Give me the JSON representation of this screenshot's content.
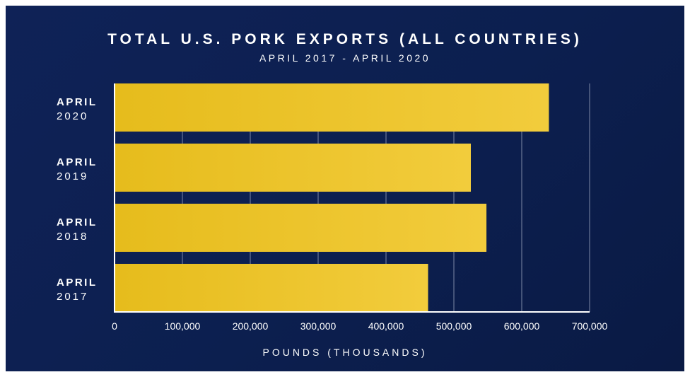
{
  "chart_data": {
    "type": "bar",
    "orientation": "horizontal",
    "title": "TOTAL U.S. PORK EXPORTS (ALL COUNTRIES)",
    "subtitle": "APRIL 2017 - APRIL 2020",
    "xlabel": "POUNDS (THOUSANDS)",
    "ylabel": "",
    "categories": [
      {
        "month": "APRIL",
        "year": "2020"
      },
      {
        "month": "APRIL",
        "year": "2019"
      },
      {
        "month": "APRIL",
        "year": "2018"
      },
      {
        "month": "APRIL",
        "year": "2017"
      }
    ],
    "values": [
      640000,
      525000,
      548000,
      462000
    ],
    "xlim": [
      0,
      700000
    ],
    "xticks": [
      0,
      100000,
      200000,
      300000,
      400000,
      500000,
      600000,
      700000
    ],
    "xtick_labels": [
      "0",
      "100,000",
      "200,000",
      "300,000",
      "400,000",
      "500,000",
      "600,000",
      "700,000"
    ],
    "grid": "vertical",
    "legend": "none",
    "colors": {
      "background": "#0c1f4f",
      "bar_start": "#e6bc1c",
      "bar_end": "#f2cc3c",
      "grid": "#7e89a6",
      "text": "#ffffff"
    }
  }
}
